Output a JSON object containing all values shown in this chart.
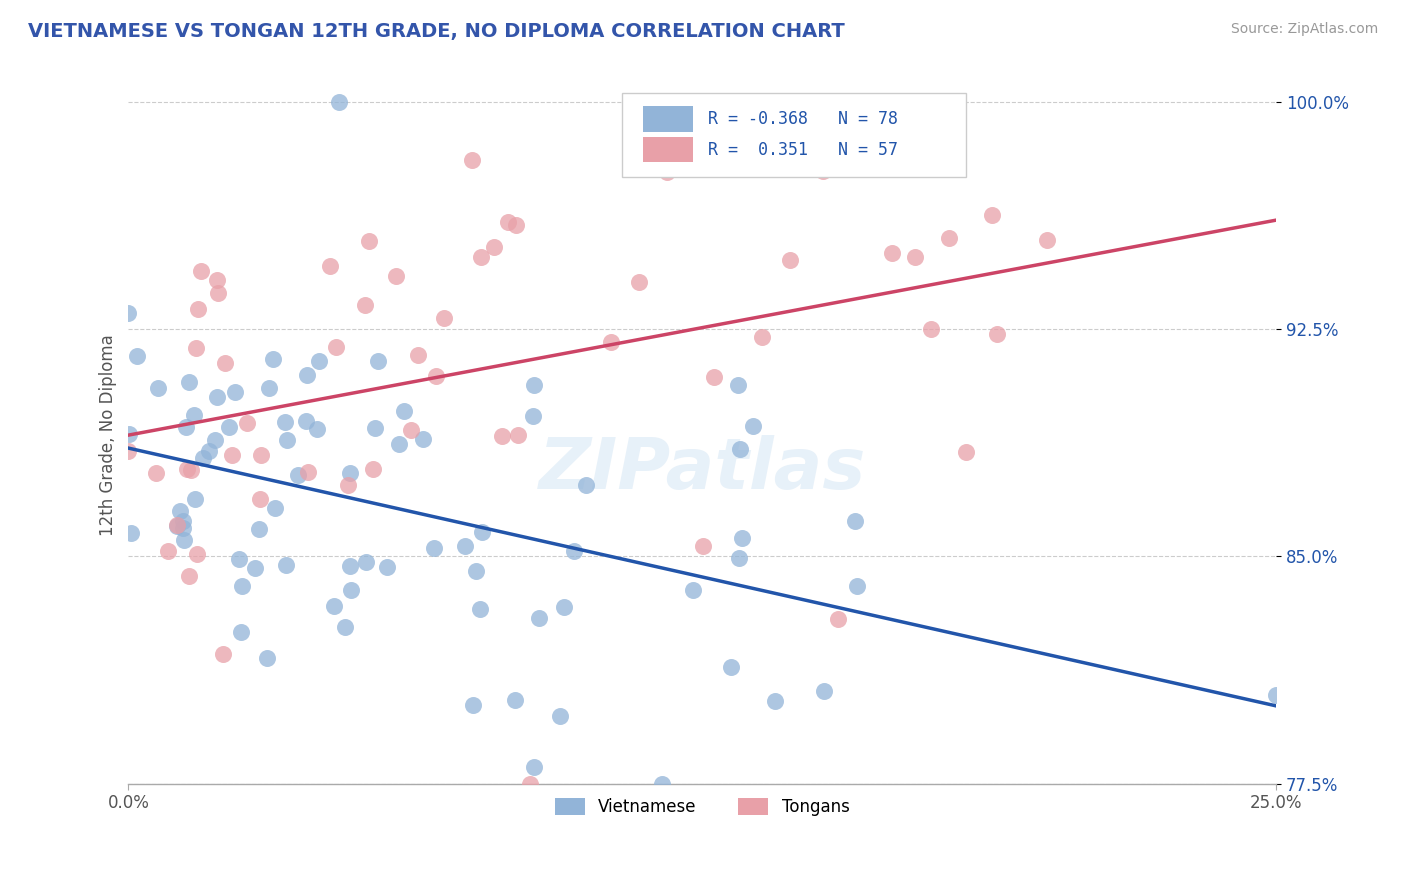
{
  "title": "VIETNAMESE VS TONGAN 12TH GRADE, NO DIPLOMA CORRELATION CHART",
  "source": "Source: ZipAtlas.com",
  "ylabel_label": "12th Grade, No Diploma",
  "legend_label1": "Vietnamese",
  "legend_label2": "Tongans",
  "R1": -0.368,
  "N1": 78,
  "R2": 0.351,
  "N2": 57,
  "color_blue": "#92b4d8",
  "color_pink": "#e8a0a8",
  "color_trend_blue": "#2255aa",
  "color_trend_pink": "#cc4466",
  "xmin": 0.0,
  "xmax": 0.25,
  "ymin": 0.775,
  "ymax": 1.005,
  "blue_seed": 42,
  "pink_seed": 7
}
